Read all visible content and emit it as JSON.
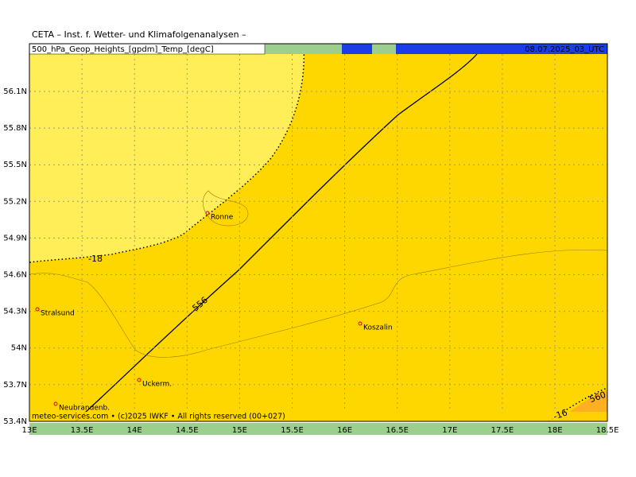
{
  "header": {
    "title": "CETA – Inst. f. Wetter- und Klimafolgenanalysen –",
    "product": "500_hPa_Geop_Heights_[gpdm]_Temp_[degC]",
    "time": "08.07.2025_03_UTC"
  },
  "footer": "meteo-services.com • (c)2025 IWKF • All rights reserved (00+027)",
  "lat_ticks": [
    "56.1N",
    "55.8N",
    "55.5N",
    "55.2N",
    "54.9N",
    "54.6N",
    "54.3N",
    "54N",
    "53.7N",
    "53.4N"
  ],
  "lon_ticks": [
    "13E",
    "13.5E",
    "14E",
    "14.5E",
    "15E",
    "15.5E",
    "16E",
    "16.5E",
    "17E",
    "17.5E",
    "18E",
    "18.5E"
  ],
  "cities": [
    "Ronne",
    "Stralsund",
    "Koszalin",
    "Uckerm.",
    "Neubrandenb."
  ],
  "contour_labels": [
    "-18",
    "556",
    "-16",
    "560"
  ]
}
